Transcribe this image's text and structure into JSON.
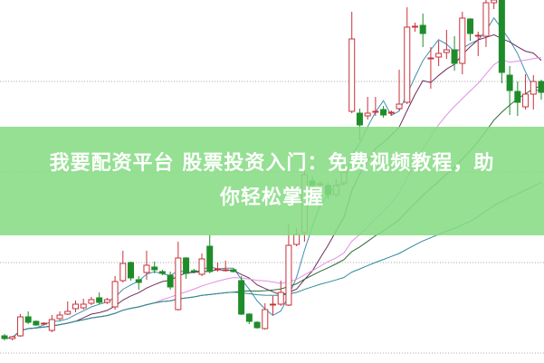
{
  "banner": {
    "line1": "我要配资平台 股票投资入门：免费视频教程，助",
    "line2": "你轻松掌握"
  },
  "chart_data": {
    "type": "candlestick",
    "title": "",
    "xlabel": "",
    "ylabel": "",
    "grid": "horizontal dotted",
    "ylim": [
      0,
      400
    ],
    "colors": {
      "up": "#c8323c",
      "down": "#1e8c2a",
      "grid": "#aaaaaa",
      "ma": [
        "#3f8fb0",
        "#6e2c5e",
        "#e48de4",
        "#2f6a34",
        "#2f8a96"
      ]
    },
    "ohlc": [
      [
        29,
        31,
        24,
        26
      ],
      [
        26,
        29,
        24,
        28
      ],
      [
        29,
        53,
        28,
        50
      ],
      [
        50,
        56,
        42,
        44
      ],
      [
        45,
        46,
        40,
        41
      ],
      [
        42,
        44,
        41,
        43
      ],
      [
        35,
        52,
        33,
        47
      ],
      [
        48,
        56,
        46,
        52
      ],
      [
        53,
        67,
        52,
        56
      ],
      [
        59,
        68,
        55,
        64
      ],
      [
        60,
        70,
        58,
        64
      ],
      [
        65,
        72,
        63,
        69
      ],
      [
        71,
        77,
        64,
        66
      ],
      [
        66,
        71,
        64,
        69
      ],
      [
        61,
        95,
        58,
        89
      ],
      [
        90,
        123,
        88,
        109
      ],
      [
        110,
        111,
        90,
        93
      ],
      [
        91,
        95,
        80,
        88
      ],
      [
        99,
        123,
        91,
        107
      ],
      [
        105,
        111,
        98,
        102
      ],
      [
        100,
        102,
        96,
        98
      ],
      [
        96,
        100,
        80,
        83
      ],
      [
        58,
        133,
        57,
        115
      ],
      [
        115,
        116,
        92,
        98
      ],
      [
        101,
        103,
        98,
        100
      ],
      [
        97,
        120,
        95,
        114
      ],
      [
        128,
        141,
        98,
        100
      ],
      [
        102,
        110,
        100,
        103
      ],
      [
        102,
        112,
        100,
        102
      ],
      [
        102,
        103,
        99,
        100
      ],
      [
        90,
        95,
        52,
        53
      ],
      [
        53,
        54,
        42,
        45
      ],
      [
        44,
        45,
        37,
        38
      ],
      [
        37,
        65,
        36,
        58
      ],
      [
        64,
        73,
        52,
        64
      ],
      [
        64,
        90,
        62,
        77
      ],
      [
        63,
        153,
        62,
        129
      ],
      [
        130,
        148,
        128,
        141
      ],
      [
        143,
        217,
        133,
        207
      ],
      [
        200,
        205,
        190,
        195
      ],
      [
        196,
        200,
        192,
        197
      ],
      [
        195,
        198,
        180,
        185
      ],
      [
        185,
        202,
        183,
        195
      ],
      [
        198,
        225,
        195,
        210
      ],
      [
        277,
        387,
        275,
        357
      ],
      [
        275,
        280,
        245,
        262
      ],
      [
        272,
        293,
        268,
        275
      ],
      [
        276,
        293,
        272,
        277
      ],
      [
        279,
        283,
        270,
        273
      ],
      [
        275,
        278,
        272,
        276
      ],
      [
        280,
        323,
        278,
        285
      ],
      [
        287,
        392,
        285,
        370
      ],
      [
        370,
        375,
        365,
        371
      ],
      [
        372,
        385,
        348,
        363
      ],
      [
        335,
        348,
        302,
        336
      ],
      [
        337,
        355,
        327,
        341
      ],
      [
        342,
        367,
        335,
        345
      ],
      [
        345,
        360,
        322,
        330
      ],
      [
        330,
        387,
        318,
        380
      ],
      [
        379,
        380,
        355,
        363
      ],
      [
        360,
        365,
        338,
        361
      ],
      [
        360,
        400,
        348,
        397
      ],
      [
        397,
        400,
        390,
        400
      ],
      [
        400,
        400,
        308,
        320
      ],
      [
        317,
        327,
        273,
        300
      ],
      [
        299,
        310,
        272,
        287
      ],
      [
        282,
        318,
        279,
        296
      ],
      [
        296,
        317,
        279,
        310
      ],
      [
        310,
        312,
        290,
        298
      ]
    ]
  }
}
